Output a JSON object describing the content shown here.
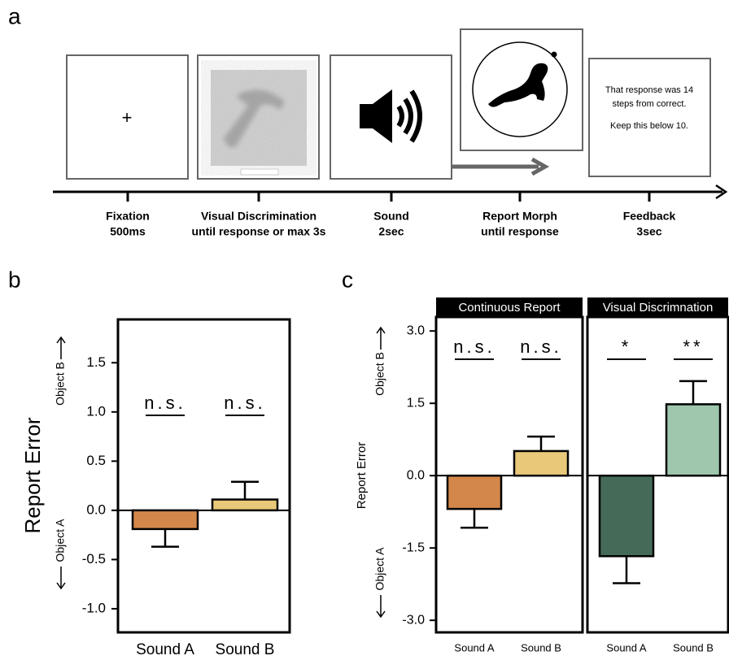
{
  "panels": [
    "a",
    "b",
    "c"
  ],
  "timeline": [
    {
      "name": "Fixation",
      "duration": "500ms"
    },
    {
      "name": "Visual Discrimination",
      "duration": "until response or max 3s"
    },
    {
      "name": "Sound",
      "duration": "2sec"
    },
    {
      "name": "Report Morph",
      "duration": "until response"
    },
    {
      "name": "Feedback",
      "duration": "3sec"
    }
  ],
  "fixation_symbol": "+",
  "feedback": [
    "That response was 14",
    "steps from correct.",
    "Keep this below 10."
  ],
  "chart_data": [
    {
      "type": "bar",
      "ylabel": "Report Error",
      "ylabel_top": "Object B",
      "ylabel_bottom": "Object A",
      "categories": [
        "Sound A",
        "Sound B"
      ],
      "values": [
        -0.19,
        0.11
      ],
      "errors": [
        0.18,
        0.18
      ],
      "colors": [
        "#d4874a",
        "#e8c97a"
      ],
      "annotations": [
        "n.s.",
        "n.s."
      ],
      "ylim": [
        -1.24,
        1.94
      ],
      "yticks": [
        {
          "value": -1,
          "label": "-1.0"
        },
        -0.5,
        {
          "value": 0,
          "label": "0.0"
        },
        0.5,
        {
          "value": 1,
          "label": "1.0"
        },
        1.5
      ]
    },
    {
      "type": "bar",
      "title": "Continuous Report",
      "ylabel": "Report Error",
      "ylabel_top": "Object B",
      "ylabel_bottom": "Object A",
      "categories": [
        "Sound A",
        "Sound B"
      ],
      "values": [
        -0.69,
        0.51
      ],
      "errors": [
        0.39,
        0.3
      ],
      "colors": [
        "#d4874a",
        "#e8c97a"
      ],
      "annotations": [
        "n.s.",
        "n.s."
      ],
      "ylim": [
        -3.25,
        3.29
      ],
      "yticks": [
        {
          "value": -3,
          "label": "-3.0"
        },
        -1.5,
        {
          "value": 0,
          "label": "0.0"
        },
        1.5,
        {
          "value": 3,
          "label": "3.0"
        }
      ]
    },
    {
      "type": "bar",
      "title": "Visual Discrimnation",
      "categories": [
        "Sound A",
        "Sound B"
      ],
      "values": [
        -1.67,
        1.48
      ],
      "errors": [
        0.56,
        0.48
      ],
      "colors": [
        "#456b58",
        "#9ec7ad"
      ],
      "annotations": [
        "*",
        "**"
      ],
      "ylim": [
        -3.25,
        3.29
      ]
    }
  ]
}
